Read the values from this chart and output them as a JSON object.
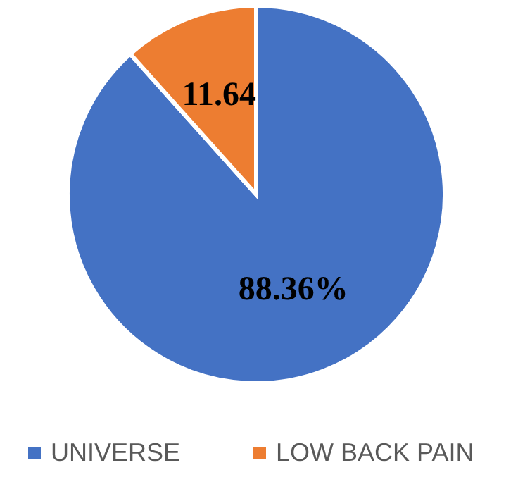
{
  "chart_data": {
    "type": "pie",
    "categories": [
      "UNIVERSE",
      "LOW BACK PAIN"
    ],
    "values": [
      88.36,
      11.64
    ],
    "colors": [
      "#4472c4",
      "#ed7d31"
    ],
    "value_labels": [
      "88.36%",
      "11.64"
    ],
    "legend": "bottom"
  }
}
